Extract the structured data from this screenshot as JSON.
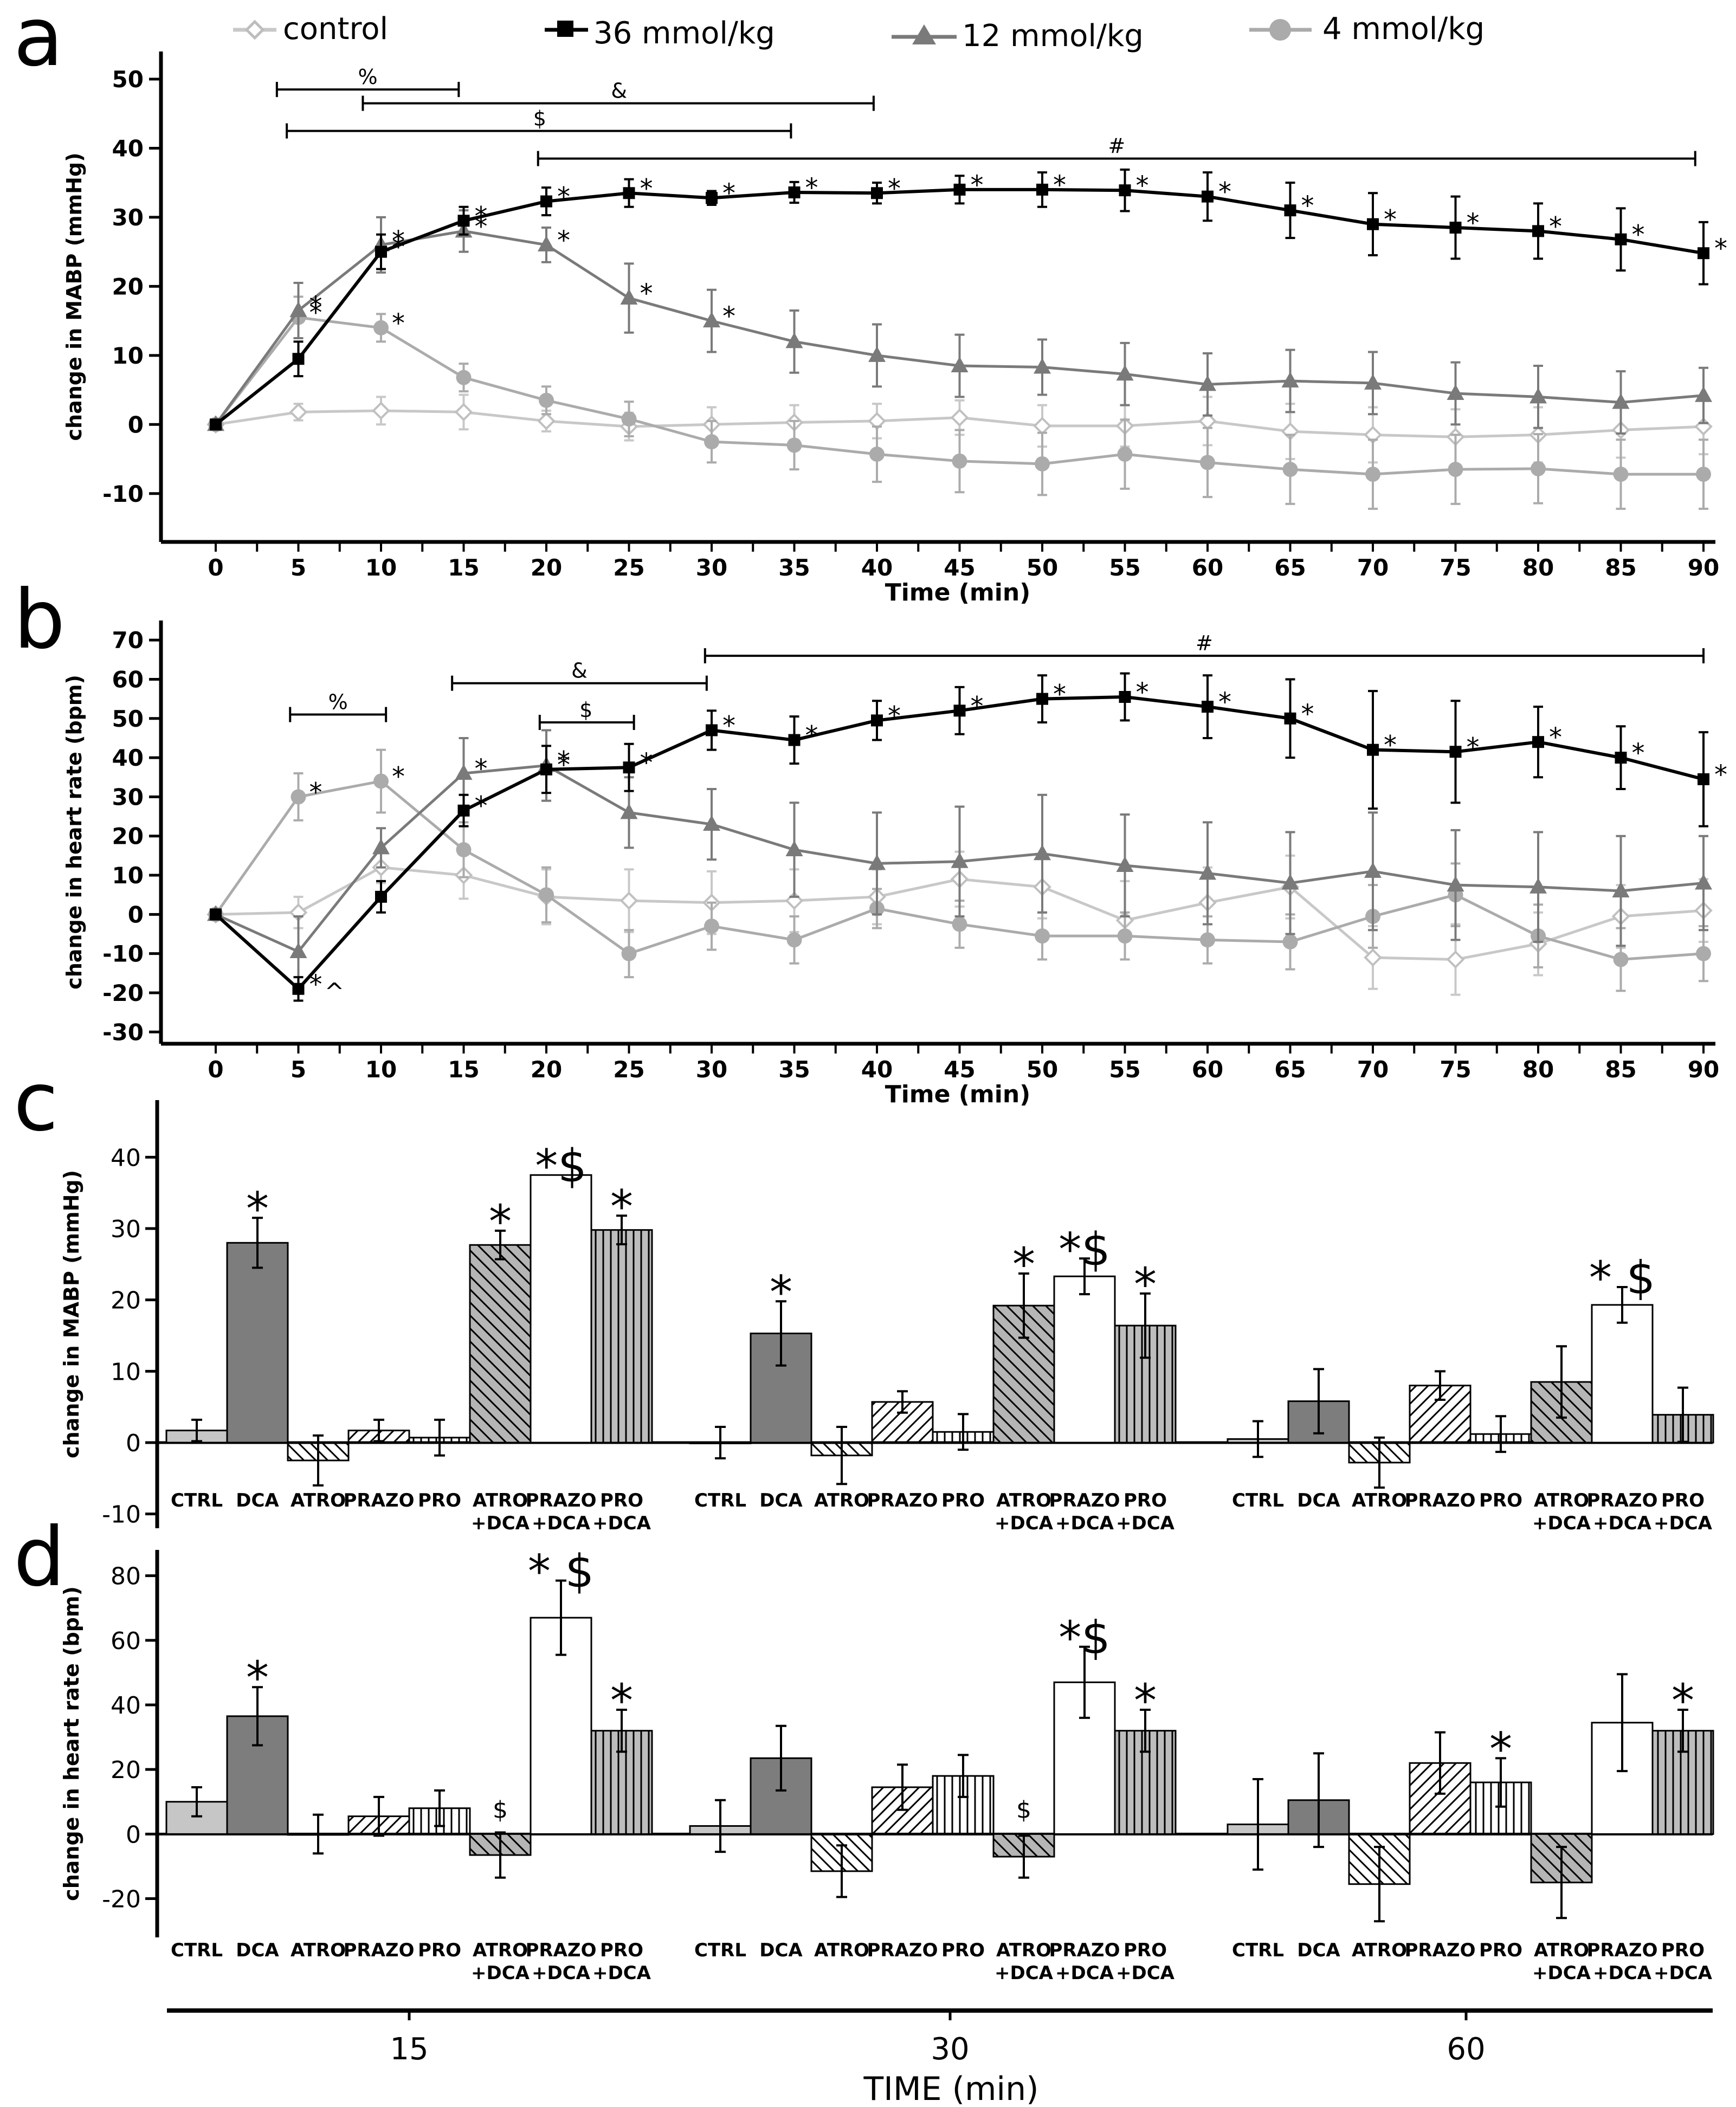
{
  "colors": {
    "control": "#c8c8c8",
    "mmol36": "#000000",
    "mmol12": "#7a7a7a",
    "mmol4": "#ababab",
    "bar_ctrl": "#c6c6c6",
    "bar_dca": "#7d7d7d",
    "bar_atro_dca": "#b5b5b5",
    "bar_prazo_dca": "#ffffff",
    "bar_pro_dca": "#bdbdbd"
  },
  "legend": [
    {
      "key": "control",
      "label": "control",
      "marker": "diamond-open"
    },
    {
      "key": "mmol36",
      "label": "36 mmol/kg",
      "marker": "square"
    },
    {
      "key": "mmol12",
      "label": "12 mmol/kg",
      "marker": "triangle"
    },
    {
      "key": "mmol4",
      "label": "4 mmol/kg",
      "marker": "circle"
    }
  ],
  "chart_data": [
    {
      "id": "a",
      "panel_letter": "a",
      "type": "line",
      "xlabel": "Time (min)",
      "ylabel": "change in MABP (mmHg)",
      "x": [
        0,
        5,
        10,
        15,
        20,
        25,
        30,
        35,
        40,
        45,
        50,
        55,
        60,
        65,
        70,
        75,
        80,
        85,
        90
      ],
      "x_tick_labels": [
        "0",
        "5",
        "10",
        "15",
        "20",
        "25",
        "30",
        "35",
        "40",
        "45",
        "50",
        "55",
        "60",
        "65",
        "70",
        "75",
        "80",
        "85",
        "90"
      ],
      "ylim": [
        -17,
        54
      ],
      "y_ticks": [
        -10,
        0,
        10,
        20,
        30,
        40,
        50
      ],
      "y_tick_labels": [
        "-10",
        "0",
        "10",
        "20",
        "30",
        "40",
        "50"
      ],
      "series": [
        {
          "key": "control",
          "name": "control",
          "values": [
            0,
            1.8,
            2,
            1.8,
            0.5,
            -0.3,
            0,
            0.3,
            0.5,
            1,
            -0.2,
            -0.2,
            0.5,
            -1,
            -1.5,
            -1.8,
            -1.5,
            -0.8,
            -0.3
          ],
          "errors": [
            0,
            1.2,
            2,
            2.5,
            1.5,
            2,
            2.5,
            2.5,
            2.5,
            2.5,
            3,
            3,
            3.5,
            4,
            4,
            4,
            4,
            4,
            4
          ],
          "stars": []
        },
        {
          "key": "mmol36",
          "name": "36 mmol/kg",
          "values": [
            0,
            9.5,
            25,
            29.5,
            32.3,
            33.5,
            32.8,
            33.6,
            33.5,
            34,
            34,
            33.9,
            33,
            31,
            29,
            28.5,
            28,
            26.8,
            24.8
          ],
          "errors": [
            0,
            2.5,
            2.5,
            2,
            2,
            2,
            1,
            1.5,
            1.5,
            2,
            2.5,
            3,
            3.5,
            4,
            4.5,
            4.5,
            4,
            4.5,
            4.5
          ],
          "stars": [
            10,
            15,
            20,
            25,
            30,
            35,
            40,
            45,
            50,
            55,
            60,
            65,
            70,
            75,
            80,
            85,
            90
          ]
        },
        {
          "key": "mmol12",
          "name": "12 mmol/kg",
          "values": [
            0,
            16.5,
            26,
            28,
            26,
            18.3,
            15,
            12,
            10,
            8.5,
            8.3,
            7.3,
            5.8,
            6.3,
            6,
            4.5,
            4,
            3.2,
            4.2
          ],
          "errors": [
            0,
            4,
            4,
            3,
            2.5,
            5,
            4.5,
            4.5,
            4.5,
            4.5,
            4,
            4.5,
            4.5,
            4.5,
            4.5,
            4.5,
            4.5,
            4.5,
            4
          ],
          "stars": [
            5,
            10,
            15,
            20,
            25,
            30
          ]
        },
        {
          "key": "mmol4",
          "name": "4 mmol/kg",
          "values": [
            0,
            15.5,
            14,
            6.8,
            3.5,
            0.8,
            -2.5,
            -3,
            -4.3,
            -5.3,
            -5.7,
            -4.3,
            -5.5,
            -6.5,
            -7.2,
            -6.5,
            -6.4,
            -7.2,
            -7.2
          ],
          "errors": [
            0,
            3,
            2,
            2,
            2,
            2.5,
            3,
            3.5,
            4,
            4.5,
            4.5,
            5,
            5,
            5,
            5,
            5,
            5,
            5,
            5
          ],
          "stars": [
            5,
            10
          ]
        }
      ],
      "bracket_tick_labels": [
        "0",
        "5",
        "10",
        "15",
        "20",
        "25",
        "30",
        "35",
        "40",
        "45",
        "50",
        "55",
        "60",
        "65",
        "70",
        "75",
        "80",
        "85",
        "90"
      ],
      "brackets": [
        {
          "label": "%",
          "from": 3.7,
          "to": 14.7,
          "y": 48.5,
          "label_at": 9.2
        },
        {
          "label": "&",
          "from": 8.9,
          "to": 39.8,
          "y": 46.5,
          "label_at": 24.4
        },
        {
          "label": "$",
          "from": 4.3,
          "to": 34.8,
          "y": 42.5,
          "label_at": 19.6
        },
        {
          "label": "#",
          "from": 19.5,
          "to": 89.5,
          "y": 38.5,
          "label_at": 54.5
        }
      ]
    },
    {
      "id": "b",
      "panel_letter": "b",
      "type": "line",
      "xlabel": "Time (min)",
      "ylabel": "change in heart rate (bpm)",
      "x": [
        0,
        5,
        10,
        15,
        20,
        25,
        30,
        35,
        40,
        45,
        50,
        55,
        60,
        65,
        70,
        75,
        80,
        85,
        90
      ],
      "x_tick_labels": [
        "0",
        "5",
        "10",
        "15",
        "20",
        "25",
        "30",
        "35",
        "40",
        "45",
        "50",
        "55",
        "60",
        "65",
        "70",
        "75",
        "80",
        "85",
        "90"
      ],
      "ylim": [
        -33,
        75
      ],
      "y_ticks": [
        -30,
        -20,
        -10,
        0,
        10,
        20,
        30,
        40,
        50,
        60,
        70
      ],
      "y_tick_labels": [
        "-30",
        "-20",
        "-10",
        "0",
        "10",
        "20",
        "30",
        "40",
        "50",
        "60",
        "70"
      ],
      "series": [
        {
          "key": "control",
          "name": "control",
          "values": [
            0,
            0.5,
            12,
            10,
            4.5,
            3.5,
            3,
            3.5,
            4.5,
            9,
            7,
            -1.5,
            3,
            7,
            -11,
            -11.5,
            -7.5,
            -0.5,
            1
          ],
          "errors": [
            0,
            4,
            4,
            6,
            7,
            8,
            8,
            8,
            7,
            7,
            8,
            10,
            9,
            8,
            8,
            9,
            8,
            8,
            8
          ],
          "stars": []
        },
        {
          "key": "mmol36",
          "name": "36 mmol/kg",
          "values": [
            0,
            -19,
            4.5,
            26.5,
            37,
            37.5,
            47,
            44.5,
            49.5,
            52,
            55,
            55.5,
            53,
            50,
            42,
            41.5,
            44,
            40,
            34.5
          ],
          "errors": [
            0,
            3,
            4,
            4,
            6,
            6,
            5,
            6,
            5,
            6,
            6,
            6,
            8,
            10,
            15,
            13,
            9,
            8,
            12
          ],
          "stars": [
            5,
            15,
            20,
            25,
            30,
            35,
            40,
            45,
            50,
            55,
            60,
            65,
            70,
            75,
            80,
            85,
            90
          ],
          "caret_at": 5
        },
        {
          "key": "mmol12",
          "name": "12 mmol/kg",
          "values": [
            0,
            -9.5,
            17,
            36,
            38,
            26,
            23,
            16.5,
            13,
            13.5,
            15.5,
            12.5,
            10.5,
            8,
            11,
            7.5,
            7,
            6,
            8
          ],
          "errors": [
            0,
            9,
            5,
            9,
            9,
            9,
            9,
            12,
            13,
            14,
            15,
            13,
            13,
            13,
            15,
            14,
            14,
            14,
            12
          ],
          "stars": [
            15,
            20
          ]
        },
        {
          "key": "mmol4",
          "name": "4 mmol/kg",
          "values": [
            0,
            30,
            34,
            16.5,
            5,
            -10,
            -3,
            -6.5,
            1.5,
            -2.5,
            -5.5,
            -5.5,
            -6.5,
            -7,
            -0.5,
            5,
            -5.5,
            -11.5,
            -10
          ],
          "errors": [
            0,
            6,
            8,
            7,
            7,
            6,
            6,
            6,
            5,
            6,
            6,
            6,
            6,
            7,
            8,
            8,
            8,
            8,
            7
          ],
          "stars": [
            5,
            10
          ]
        }
      ],
      "brackets": [
        {
          "label": "%",
          "from": 4.5,
          "to": 10.3,
          "y": 51,
          "label_at": 7.4
        },
        {
          "label": "&",
          "from": 14.3,
          "to": 29.7,
          "y": 59,
          "label_at": 22
        },
        {
          "label": "$",
          "from": 19.6,
          "to": 25.3,
          "y": 49,
          "label_at": 22.4
        },
        {
          "label": "#",
          "from": 29.6,
          "to": 90,
          "y": 66,
          "label_at": 59.8
        }
      ]
    },
    {
      "id": "c",
      "panel_letter": "c",
      "type": "bar",
      "ylabel": "change in MABP (mmHg)",
      "ylim": [
        -12,
        48
      ],
      "y_ticks": [
        -10,
        0,
        10,
        20,
        30,
        40
      ],
      "y_tick_labels": [
        "-10",
        "0",
        "10",
        "20",
        "30",
        "40"
      ],
      "categories": [
        "CTRL",
        "DCA",
        "ATRO",
        "PRAZO",
        "PRO",
        "ATRO\n+DCA",
        "PRAZO\n+DCA",
        "PRO\n+DCA"
      ],
      "groups": [
        {
          "time": "15",
          "values": [
            1.7,
            28,
            -2.5,
            1.7,
            0.7,
            27.7,
            37.5,
            29.8
          ],
          "errors": [
            1.5,
            3.5,
            3.5,
            1.5,
            2.5,
            2,
            0,
            2
          ],
          "annotations": [
            "",
            "*",
            "",
            "",
            "",
            "*",
            "*$",
            "*"
          ]
        },
        {
          "time": "30",
          "values": [
            0,
            15.3,
            -1.8,
            5.7,
            1.5,
            19.2,
            23.3,
            16.4
          ],
          "errors": [
            2.2,
            4.5,
            4,
            1.5,
            2.5,
            4.5,
            2.5,
            4.5
          ],
          "annotations": [
            "",
            "*",
            "",
            "",
            "",
            "*",
            "*$",
            "*"
          ]
        },
        {
          "time": "60",
          "values": [
            0.5,
            5.8,
            -2.8,
            8,
            1.2,
            8.5,
            19.3,
            3.9
          ],
          "errors": [
            2.5,
            4.5,
            3.5,
            2,
            2.5,
            5,
            2.5,
            3.8
          ],
          "annotations": [
            "",
            "",
            "",
            "",
            "",
            "",
            "* $",
            ""
          ]
        }
      ]
    },
    {
      "id": "d",
      "panel_letter": "d",
      "type": "bar",
      "ylabel": "change in heart rate (bpm)",
      "ylim": [
        -32,
        88
      ],
      "y_ticks": [
        -20,
        0,
        20,
        40,
        60,
        80
      ],
      "y_tick_labels": [
        "-20",
        "0",
        "20",
        "40",
        "60",
        "80"
      ],
      "categories": [
        "CTRL",
        "DCA",
        "ATRO",
        "PRAZO",
        "PRO",
        "ATRO\n+DCA",
        "PRAZO\n+DCA",
        "PRO\n+DCA"
      ],
      "groups": [
        {
          "time": "15",
          "values": [
            10,
            36.5,
            0,
            5.5,
            8,
            -6.5,
            67,
            32
          ],
          "errors": [
            4.5,
            9,
            6,
            6,
            5.5,
            7,
            11.5,
            6.5
          ],
          "annotations": [
            "",
            "*",
            "",
            "",
            "",
            "$",
            "* $",
            "*"
          ]
        },
        {
          "time": "30",
          "values": [
            2.5,
            23.5,
            -11.5,
            14.5,
            18,
            -7,
            47,
            32
          ],
          "errors": [
            8,
            10,
            8,
            7,
            6.5,
            6.5,
            11,
            6.5
          ],
          "annotations": [
            "",
            "",
            "",
            "",
            "",
            "$",
            "*$",
            "*"
          ]
        },
        {
          "time": "60",
          "values": [
            3,
            10.5,
            -15.5,
            22,
            16,
            -15,
            34.5,
            32
          ],
          "errors": [
            14,
            14.5,
            11.5,
            9.5,
            7.5,
            11,
            15,
            6.5
          ],
          "annotations": [
            "",
            "",
            "",
            "",
            "*",
            "",
            "",
            "*"
          ]
        }
      ],
      "bottom_axis": {
        "label": "TIME (min)",
        "tick_labels": [
          "15",
          "30",
          "60"
        ]
      }
    }
  ]
}
